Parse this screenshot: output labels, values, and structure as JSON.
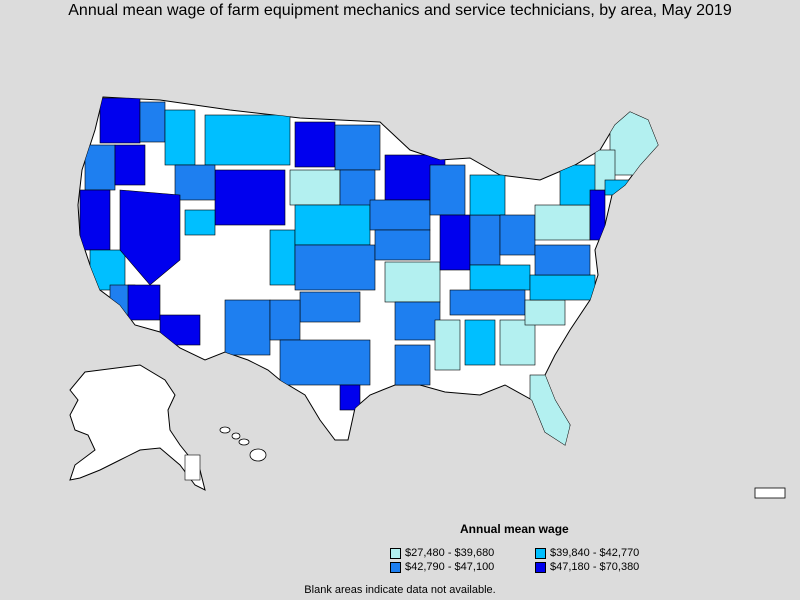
{
  "title": "Annual mean wage of farm equipment mechanics and service technicians, by area, May 2019",
  "legend": {
    "title": "Annual mean wage",
    "items": [
      {
        "label": "$27,480 - $39,680",
        "color": "#b3f0f0"
      },
      {
        "label": "$39,840 - $42,770",
        "color": "#00bfff"
      },
      {
        "label": "$42,790 - $47,100",
        "color": "#1e7ff0"
      },
      {
        "label": "$47,180 - $70,380",
        "color": "#0000ee"
      }
    ]
  },
  "note": "Blank areas indicate data not available.",
  "colors": {
    "background": "#dcdcdc",
    "no_data": "#ffffff",
    "border": "#000000"
  }
}
